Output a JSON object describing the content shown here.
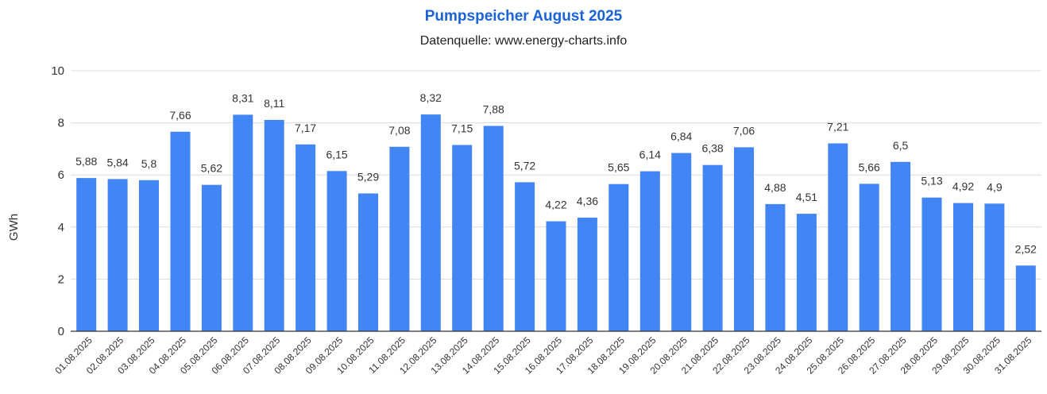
{
  "chart_data": {
    "type": "bar",
    "title": "Pumpspeicher August 2025",
    "subtitle": "Datenquelle: www.energy-charts.info",
    "xlabel": "",
    "ylabel": "GWh",
    "ylim": [
      0,
      10
    ],
    "yticks": [
      "0",
      "2",
      "4",
      "6",
      "8",
      "10"
    ],
    "grid": true,
    "legend": "none",
    "bar_color": "#4285f4",
    "title_color": "#1a62d6",
    "categories": [
      "01.08.2025",
      "02.08.2025",
      "03.08.2025",
      "04.08.2025",
      "05.08.2025",
      "06.08.2025",
      "07.08.2025",
      "08.08.2025",
      "09.08.2025",
      "10.08.2025",
      "11.08.2025",
      "12.08.2025",
      "13.08.2025",
      "14.08.2025",
      "15.08.2025",
      "16.08.2025",
      "17.08.2025",
      "18.08.2025",
      "19.08.2025",
      "20.08.2025",
      "21.08.2025",
      "22.08.2025",
      "23.08.2025",
      "24.08.2025",
      "25.08.2025",
      "26.08.2025",
      "27.08.2025",
      "28.08.2025",
      "29.08.2025",
      "30.08.2025",
      "31.08.2025"
    ],
    "values": [
      5.88,
      5.84,
      5.8,
      7.66,
      5.62,
      8.31,
      8.11,
      7.17,
      6.15,
      5.29,
      7.08,
      8.32,
      7.15,
      7.88,
      5.72,
      4.22,
      4.36,
      5.65,
      6.14,
      6.84,
      6.38,
      7.06,
      4.88,
      4.51,
      7.21,
      5.66,
      6.5,
      5.13,
      4.92,
      4.9,
      2.52
    ],
    "value_labels": [
      "5,88",
      "5,84",
      "5,8",
      "7,66",
      "5,62",
      "8,31",
      "8,11",
      "7,17",
      "6,15",
      "5,29",
      "7,08",
      "8,32",
      "7,15",
      "7,88",
      "5,72",
      "4,22",
      "4,36",
      "5,65",
      "6,14",
      "6,84",
      "6,38",
      "7,06",
      "4,88",
      "4,51",
      "7,21",
      "5,66",
      "6,5",
      "5,13",
      "4,92",
      "4,9",
      "2,52"
    ]
  }
}
